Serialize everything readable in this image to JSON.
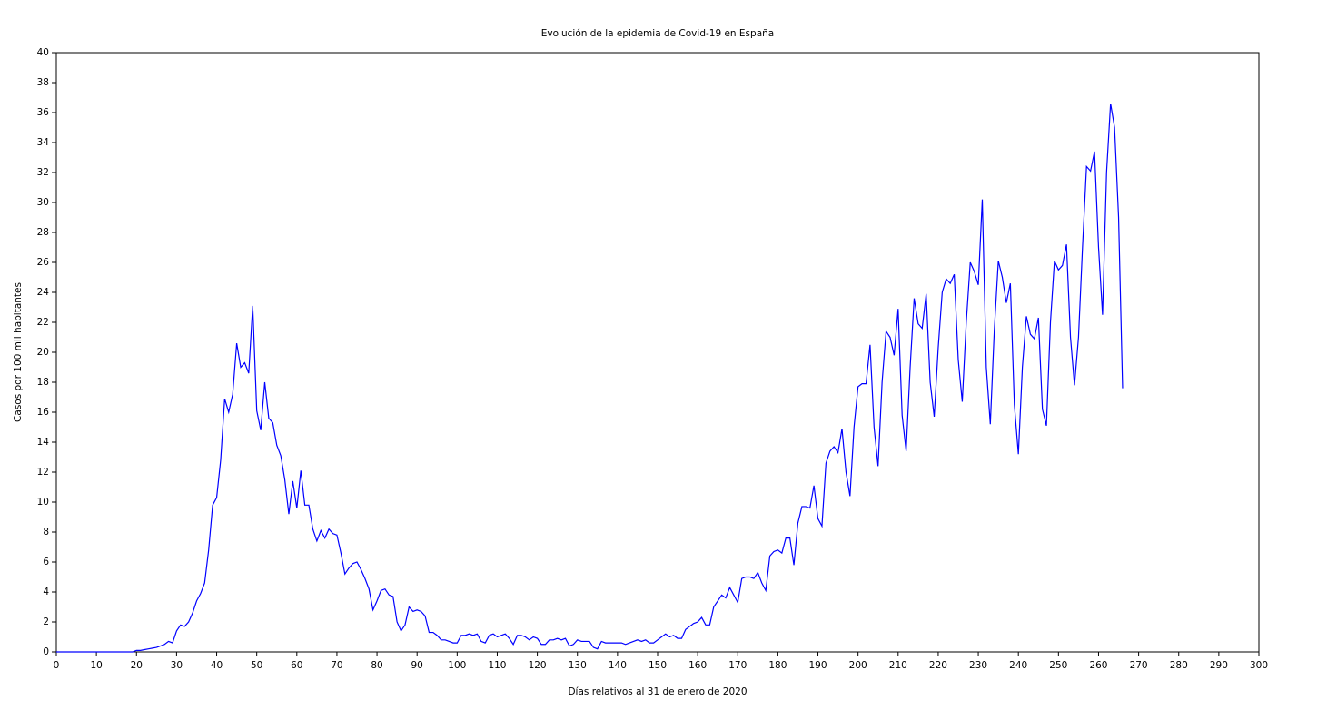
{
  "chart_data": {
    "type": "line",
    "title": "Evolución de la epidemia de Covid-19 en España",
    "xlabel": "Días relativos al 31 de enero de 2020",
    "ylabel": "Casos por 100 mil habitantes",
    "xlim": [
      0,
      300
    ],
    "ylim": [
      0,
      40
    ],
    "xticks": [
      0,
      10,
      20,
      30,
      40,
      50,
      60,
      70,
      80,
      90,
      100,
      110,
      120,
      130,
      140,
      150,
      160,
      170,
      180,
      190,
      200,
      210,
      220,
      230,
      240,
      250,
      260,
      270,
      280,
      290,
      300
    ],
    "yticks": [
      0,
      2,
      4,
      6,
      8,
      10,
      12,
      14,
      16,
      18,
      20,
      22,
      24,
      26,
      28,
      30,
      32,
      34,
      36,
      38,
      40
    ],
    "x": [
      0,
      1,
      2,
      3,
      4,
      5,
      6,
      7,
      8,
      9,
      10,
      11,
      12,
      13,
      14,
      15,
      16,
      17,
      18,
      19,
      20,
      21,
      22,
      23,
      24,
      25,
      26,
      27,
      28,
      29,
      30,
      31,
      32,
      33,
      34,
      35,
      36,
      37,
      38,
      39,
      40,
      41,
      42,
      43,
      44,
      45,
      46,
      47,
      48,
      49,
      50,
      51,
      52,
      53,
      54,
      55,
      56,
      57,
      58,
      59,
      60,
      61,
      62,
      63,
      64,
      65,
      66,
      67,
      68,
      69,
      70,
      71,
      72,
      73,
      74,
      75,
      76,
      77,
      78,
      79,
      80,
      81,
      82,
      83,
      84,
      85,
      86,
      87,
      88,
      89,
      90,
      91,
      92,
      93,
      94,
      95,
      96,
      97,
      98,
      99,
      100,
      101,
      102,
      103,
      104,
      105,
      106,
      107,
      108,
      109,
      110,
      111,
      112,
      113,
      114,
      115,
      116,
      117,
      118,
      119,
      120,
      121,
      122,
      123,
      124,
      125,
      126,
      127,
      128,
      129,
      130,
      131,
      132,
      133,
      134,
      135,
      136,
      137,
      138,
      139,
      140,
      141,
      142,
      143,
      144,
      145,
      146,
      147,
      148,
      149,
      150,
      151,
      152,
      153,
      154,
      155,
      156,
      157,
      158,
      159,
      160,
      161,
      162,
      163,
      164,
      165,
      166,
      167,
      168,
      169,
      170,
      171,
      172,
      173,
      174,
      175,
      176,
      177,
      178,
      179,
      180,
      181,
      182,
      183,
      184,
      185,
      186,
      187,
      188,
      189,
      190,
      191,
      192,
      193,
      194,
      195,
      196,
      197,
      198,
      199,
      200,
      201,
      202,
      203,
      204,
      205,
      206,
      207,
      208,
      209,
      210,
      211,
      212,
      213,
      214,
      215,
      216,
      217,
      218,
      219,
      220,
      221,
      222,
      223,
      224,
      225,
      226,
      227,
      228,
      229,
      230,
      231,
      232,
      233,
      234,
      235,
      236,
      237,
      238,
      239,
      240,
      241,
      242,
      243,
      244,
      245,
      246,
      247,
      248,
      249,
      250,
      251,
      252,
      253,
      254,
      255,
      256,
      257,
      258,
      259,
      260,
      261,
      262,
      263,
      264,
      265,
      266
    ],
    "series": [
      {
        "color": "#0000ff",
        "values": [
          0,
          0,
          0,
          0,
          0,
          0,
          0,
          0,
          0,
          0,
          0,
          0,
          0,
          0,
          0,
          0,
          0,
          0,
          0,
          0,
          0.1,
          0.1,
          0.15,
          0.2,
          0.25,
          0.3,
          0.4,
          0.5,
          0.7,
          0.6,
          1.4,
          1.8,
          1.7,
          2.0,
          2.6,
          3.4,
          3.9,
          4.6,
          6.8,
          9.8,
          10.3,
          12.8,
          16.9,
          16.0,
          17.2,
          20.6,
          19.0,
          19.3,
          18.6,
          23.1,
          16.1,
          14.8,
          18.0,
          15.6,
          15.3,
          13.8,
          13.1,
          11.5,
          9.2,
          11.4,
          9.6,
          12.1,
          9.8,
          9.8,
          8.2,
          7.4,
          8.1,
          7.6,
          8.2,
          7.9,
          7.8,
          6.6,
          5.2,
          5.6,
          5.9,
          6.0,
          5.5,
          4.9,
          4.2,
          2.8,
          3.4,
          4.1,
          4.2,
          3.8,
          3.7,
          2.0,
          1.4,
          1.8,
          3.0,
          2.7,
          2.8,
          2.7,
          2.4,
          1.3,
          1.3,
          1.1,
          0.8,
          0.8,
          0.7,
          0.6,
          0.6,
          1.1,
          1.1,
          1.2,
          1.1,
          1.2,
          0.7,
          0.6,
          1.1,
          1.2,
          1.0,
          1.1,
          1.2,
          0.9,
          0.5,
          1.1,
          1.1,
          1.0,
          0.8,
          1.0,
          0.9,
          0.5,
          0.5,
          0.8,
          0.8,
          0.9,
          0.8,
          0.9,
          0.4,
          0.5,
          0.8,
          0.7,
          0.7,
          0.7,
          0.3,
          0.2,
          0.7,
          0.6,
          0.6,
          0.6,
          0.6,
          0.6,
          0.5,
          0.6,
          0.7,
          0.8,
          0.7,
          0.8,
          0.6,
          0.6,
          0.8,
          1.0,
          1.2,
          1.0,
          1.1,
          0.9,
          0.9,
          1.5,
          1.7,
          1.9,
          2.0,
          2.3,
          1.8,
          1.8,
          3.0,
          3.4,
          3.8,
          3.6,
          4.3,
          3.8,
          3.3,
          4.9,
          5.0,
          5.0,
          4.9,
          5.3,
          4.6,
          4.1,
          6.4,
          6.7,
          6.8,
          6.6,
          7.6,
          7.6,
          5.8,
          8.6,
          9.7,
          9.7,
          9.6,
          11.1,
          8.9,
          8.4,
          12.6,
          13.4,
          13.7,
          13.3,
          14.9,
          12.0,
          10.4,
          15.0,
          17.7,
          17.9,
          17.9,
          20.5,
          15.0,
          12.4,
          18.0,
          21.4,
          21.0,
          19.8,
          22.9,
          15.8,
          13.4,
          19.0,
          23.6,
          21.9,
          21.6,
          23.9,
          18.0,
          15.7,
          20.3,
          24.0,
          24.9,
          24.6,
          25.2,
          19.5,
          16.7,
          22.0,
          26.0,
          25.4,
          24.5,
          30.2,
          19.0,
          15.2,
          21.5,
          26.1,
          25.0,
          23.3,
          24.6,
          16.5,
          13.2,
          19.0,
          22.4,
          21.2,
          20.9,
          22.3,
          16.2,
          15.1,
          22.0,
          26.1,
          25.5,
          25.8,
          27.2,
          21.0,
          17.8,
          21.0,
          27.0,
          32.4,
          32.1,
          33.4,
          27.0,
          22.5,
          32.0,
          36.6,
          35.0,
          29.0,
          17.6
        ]
      }
    ]
  }
}
